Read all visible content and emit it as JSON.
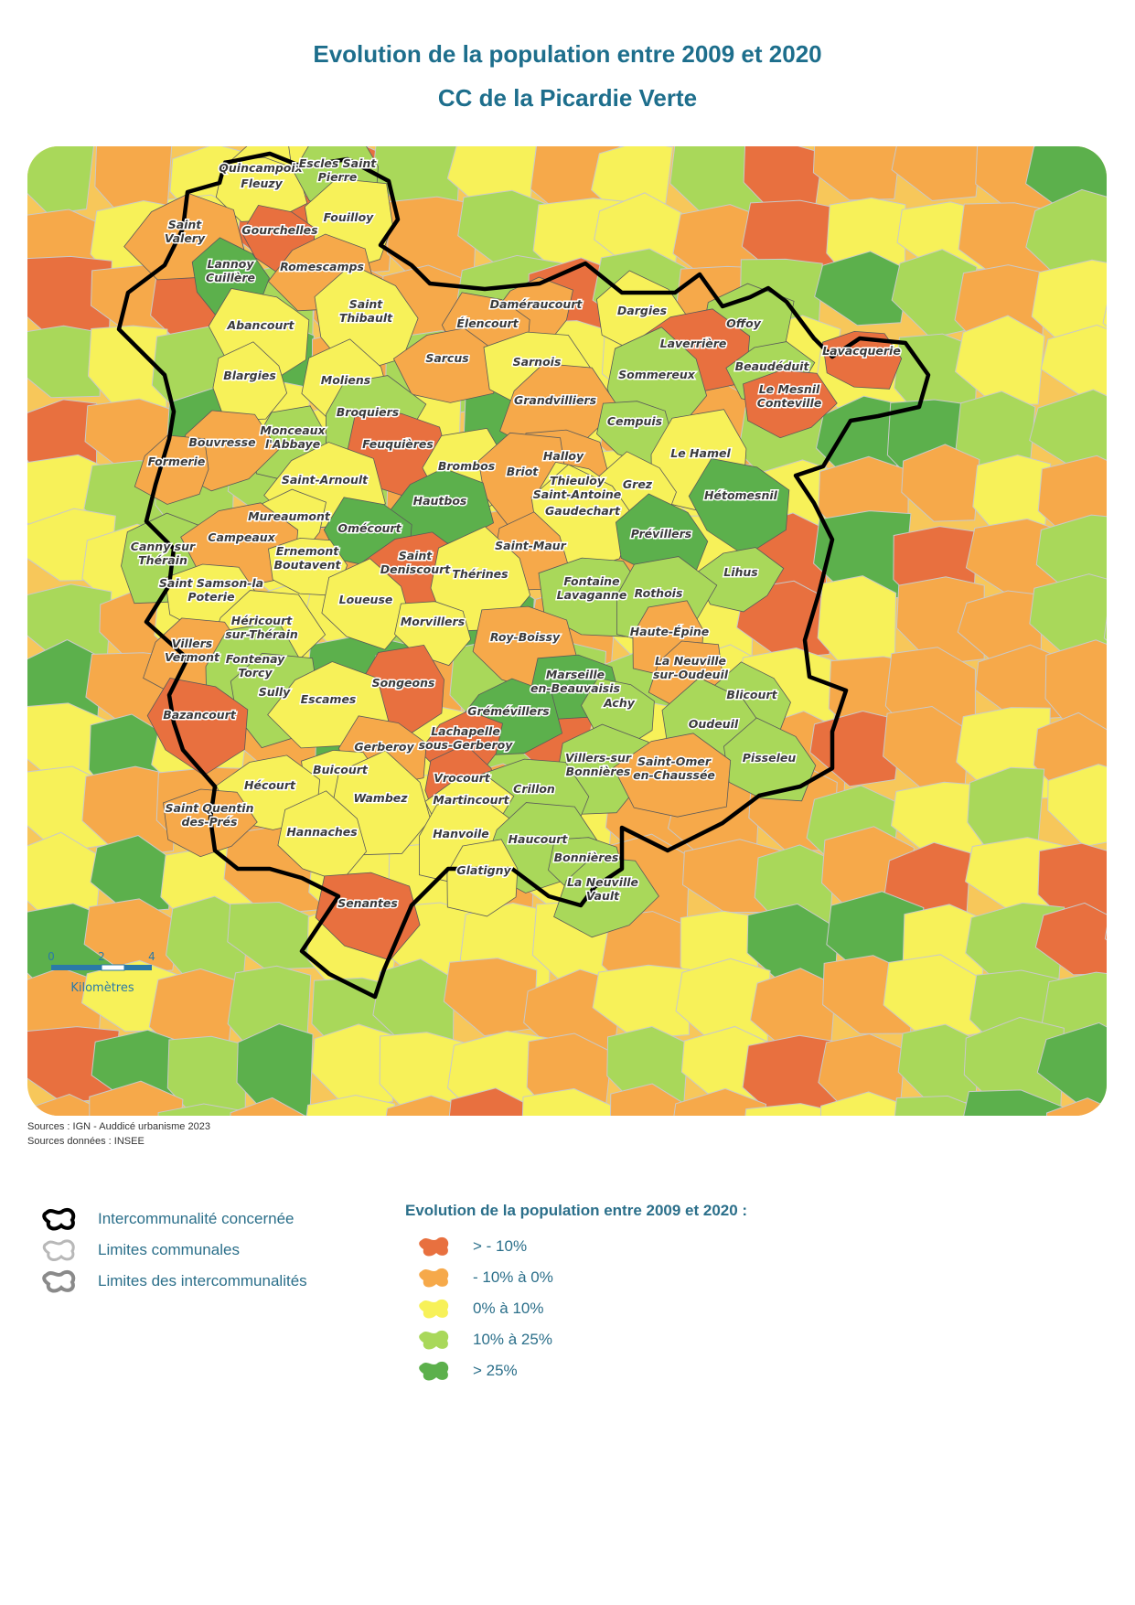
{
  "title": "Evolution de la population entre 2009 et 2020",
  "subtitle": "CC de la Picardie Verte",
  "sources": [
    "Sources : IGN - Auddicé urbanisme 2023",
    "Sources données : INSEE"
  ],
  "scale_bar": {
    "ticks": [
      "0",
      "2",
      "4"
    ],
    "unit": "Kilomètres"
  },
  "colors": {
    "gt_minus10": "#e8703f",
    "minus10_0": "#f6a94a",
    "zero_10": "#f7f159",
    "ten_25": "#a9d85a",
    "gt_25": "#5cb04c",
    "boundary": "#000000"
  },
  "legend_boundaries": [
    {
      "label": "Intercommunalité concernée",
      "stroke": "#000000"
    },
    {
      "label": "Limites communales",
      "stroke": "#b8b8b8"
    },
    {
      "label": "Limites des intercommunalités",
      "stroke": "#8a8a8a"
    }
  ],
  "legend_classes_title": "Evolution de la population entre 2009 et 2020 :",
  "legend_classes": [
    {
      "label": "> - 10%",
      "color": "#e8703f"
    },
    {
      "label": "- 10% à 0%",
      "color": "#f6a94a"
    },
    {
      "label": "0% à 10%",
      "color": "#f7f159"
    },
    {
      "label": "10% à 25%",
      "color": "#a9d85a"
    },
    {
      "label": "> 25%",
      "color": "#5cb04c"
    }
  ],
  "communes": [
    {
      "name": "Quincampoix",
      "cls": "zero_10"
    },
    {
      "name": "Fleuzy",
      "cls": "zero_10"
    },
    {
      "name": "Escles Saint Pierre",
      "cls": "ten_25"
    },
    {
      "name": "Fouilloy",
      "cls": "zero_10"
    },
    {
      "name": "Saint Valery",
      "cls": "minus10_0"
    },
    {
      "name": "Gourchelles",
      "cls": "gt_minus10"
    },
    {
      "name": "Lannoy Cuillère",
      "cls": "gt_25"
    },
    {
      "name": "Romescamps",
      "cls": "minus10_0"
    },
    {
      "name": "Abancourt",
      "cls": "zero_10"
    },
    {
      "name": "Saint Thibault",
      "cls": "zero_10"
    },
    {
      "name": "Daméraucourt",
      "cls": "minus10_0"
    },
    {
      "name": "Élencourt",
      "cls": "minus10_0"
    },
    {
      "name": "Dargies",
      "cls": "zero_10"
    },
    {
      "name": "Offoy",
      "cls": "ten_25"
    },
    {
      "name": "Laverrière",
      "cls": "gt_minus10"
    },
    {
      "name": "Lavacquerie",
      "cls": "gt_minus10"
    },
    {
      "name": "Blargies",
      "cls": "zero_10"
    },
    {
      "name": "Sarcus",
      "cls": "minus10_0"
    },
    {
      "name": "Sarnois",
      "cls": "zero_10"
    },
    {
      "name": "Sommereux",
      "cls": "ten_25"
    },
    {
      "name": "Beaudéduit",
      "cls": "ten_25"
    },
    {
      "name": "Le Mesnil Conteville",
      "cls": "gt_minus10"
    },
    {
      "name": "Moliens",
      "cls": "zero_10"
    },
    {
      "name": "Broquiers",
      "cls": "ten_25"
    },
    {
      "name": "Grandvilliers",
      "cls": "minus10_0"
    },
    {
      "name": "Cempuis",
      "cls": "ten_25"
    },
    {
      "name": "Monceaux l'Abbaye",
      "cls": "ten_25"
    },
    {
      "name": "Bouvresse",
      "cls": "minus10_0"
    },
    {
      "name": "Feuquières",
      "cls": "gt_minus10"
    },
    {
      "name": "Le Hamel",
      "cls": "zero_10"
    },
    {
      "name": "Formerie",
      "cls": "minus10_0"
    },
    {
      "name": "Halloy",
      "cls": "minus10_0"
    },
    {
      "name": "Brombos",
      "cls": "zero_10"
    },
    {
      "name": "Briot",
      "cls": "minus10_0"
    },
    {
      "name": "Saint-Arnoult",
      "cls": "zero_10"
    },
    {
      "name": "Thieuloy Saint-Antoine",
      "cls": "zero_10"
    },
    {
      "name": "Grez",
      "cls": "zero_10"
    },
    {
      "name": "Hautbos",
      "cls": "gt_25"
    },
    {
      "name": "Hétomesnil",
      "cls": "gt_25"
    },
    {
      "name": "Gaudechart",
      "cls": "zero_10"
    },
    {
      "name": "Mureaumont",
      "cls": "zero_10"
    },
    {
      "name": "Omécourt",
      "cls": "gt_25"
    },
    {
      "name": "Prévillers",
      "cls": "gt_25"
    },
    {
      "name": "Canny sur Thérain",
      "cls": "ten_25"
    },
    {
      "name": "Campeaux",
      "cls": "minus10_0"
    },
    {
      "name": "Ernemont Boutavent",
      "cls": "zero_10"
    },
    {
      "name": "Saint-Maur",
      "cls": "minus10_0"
    },
    {
      "name": "Saint Deniscourt",
      "cls": "gt_minus10"
    },
    {
      "name": "Fontaine Lavaganne",
      "cls": "ten_25"
    },
    {
      "name": "Thérines",
      "cls": "zero_10"
    },
    {
      "name": "Lihus",
      "cls": "ten_25"
    },
    {
      "name": "Saint Samson-la Poterie",
      "cls": "zero_10"
    },
    {
      "name": "Loueuse",
      "cls": "zero_10"
    },
    {
      "name": "Rothois",
      "cls": "ten_25"
    },
    {
      "name": "Héricourt sur-Thérain",
      "cls": "zero_10"
    },
    {
      "name": "Morvillers",
      "cls": "zero_10"
    },
    {
      "name": "Haute-Épine",
      "cls": "minus10_0"
    },
    {
      "name": "Villers Vermont",
      "cls": "minus10_0"
    },
    {
      "name": "Roy-Boissy",
      "cls": "minus10_0"
    },
    {
      "name": "Fontenay Torcy",
      "cls": "ten_25"
    },
    {
      "name": "La Neuville sur-Oudeuil",
      "cls": "minus10_0"
    },
    {
      "name": "Marseille en-Beauvaisis",
      "cls": "gt_25"
    },
    {
      "name": "Songeons",
      "cls": "gt_minus10"
    },
    {
      "name": "Sully",
      "cls": "ten_25"
    },
    {
      "name": "Escames",
      "cls": "zero_10"
    },
    {
      "name": "Achy",
      "cls": "ten_25"
    },
    {
      "name": "Blicourt",
      "cls": "ten_25"
    },
    {
      "name": "Grémévillers",
      "cls": "gt_25"
    },
    {
      "name": "Bazancourt",
      "cls": "gt_minus10"
    },
    {
      "name": "Oudeuil",
      "cls": "ten_25"
    },
    {
      "name": "Lachapelle sous-Gerberoy",
      "cls": "gt_minus10"
    },
    {
      "name": "Gerberoy",
      "cls": "minus10_0"
    },
    {
      "name": "Pisseleu",
      "cls": "ten_25"
    },
    {
      "name": "Villers-sur Bonnières",
      "cls": "ten_25"
    },
    {
      "name": "Saint-Omer en-Chaussée",
      "cls": "minus10_0"
    },
    {
      "name": "Buicourt",
      "cls": "zero_10"
    },
    {
      "name": "Vrocourt",
      "cls": "gt_minus10"
    },
    {
      "name": "Hécourt",
      "cls": "zero_10"
    },
    {
      "name": "Crillon",
      "cls": "ten_25"
    },
    {
      "name": "Wambez",
      "cls": "zero_10"
    },
    {
      "name": "Martincourt",
      "cls": "zero_10"
    },
    {
      "name": "Saint Quentin des-Prés",
      "cls": "minus10_0"
    },
    {
      "name": "Hannaches",
      "cls": "zero_10"
    },
    {
      "name": "Hanvoile",
      "cls": "zero_10"
    },
    {
      "name": "Haucourt",
      "cls": "ten_25"
    },
    {
      "name": "Bonnières",
      "cls": "ten_25"
    },
    {
      "name": "Glatigny",
      "cls": "zero_10"
    },
    {
      "name": "La Neuville Vault",
      "cls": "ten_25"
    },
    {
      "name": "Senantes",
      "cls": "gt_minus10"
    }
  ]
}
